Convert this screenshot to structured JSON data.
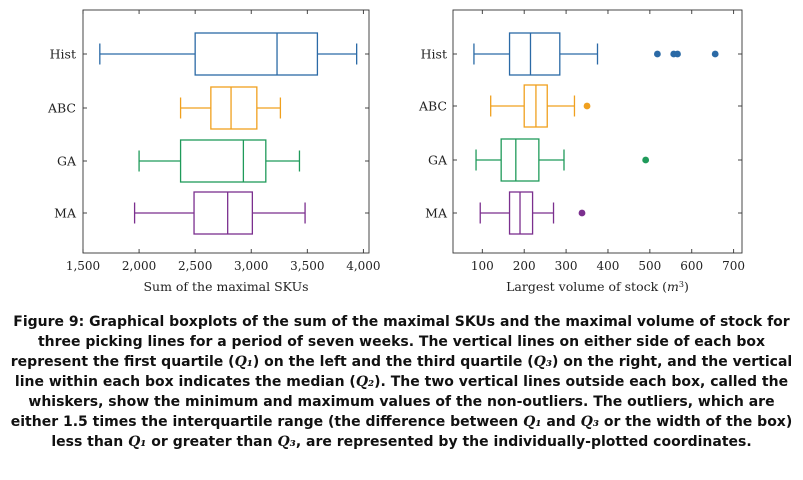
{
  "chart_data": [
    {
      "type": "boxplot",
      "orientation": "horizontal",
      "xlabel": "Sum of the maximal SKUs",
      "xlim": [
        1500,
        4050
      ],
      "xticks": [
        1500,
        2000,
        2500,
        3000,
        3500,
        4000
      ],
      "xtick_labels": [
        "1,500",
        "2,000",
        "2,500",
        "3,000",
        "3,500",
        "4,000"
      ],
      "categories": [
        "Hist",
        "ABC",
        "GA",
        "MA"
      ],
      "series": [
        {
          "name": "Hist",
          "color": "#2b6aa6",
          "min": 1650,
          "q1": 2500,
          "median": 3230,
          "q3": 3590,
          "max": 3940,
          "outliers": []
        },
        {
          "name": "ABC",
          "color": "#f0a01e",
          "min": 2370,
          "q1": 2640,
          "median": 2820,
          "q3": 3050,
          "max": 3260,
          "outliers": []
        },
        {
          "name": "GA",
          "color": "#1f9a5a",
          "min": 2000,
          "q1": 2370,
          "median": 2930,
          "q3": 3130,
          "max": 3430,
          "outliers": []
        },
        {
          "name": "MA",
          "color": "#7b2f8e",
          "min": 1960,
          "q1": 2490,
          "median": 2790,
          "q3": 3010,
          "max": 3480,
          "outliers": []
        }
      ]
    },
    {
      "type": "boxplot",
      "orientation": "horizontal",
      "xlabel": "Largest volume of stock",
      "xlabel_unit_base": "m",
      "xlabel_unit_exp": "3",
      "xlim": [
        30,
        720
      ],
      "xticks": [
        100,
        200,
        300,
        400,
        500,
        600,
        700
      ],
      "xtick_labels": [
        "100",
        "200",
        "300",
        "400",
        "500",
        "600",
        "700"
      ],
      "categories": [
        "Hist",
        "ABC",
        "GA",
        "MA"
      ],
      "series": [
        {
          "name": "Hist",
          "color": "#2b6aa6",
          "min": 80,
          "q1": 165,
          "median": 215,
          "q3": 285,
          "max": 375,
          "outliers": [
            518,
            557,
            566,
            656
          ]
        },
        {
          "name": "ABC",
          "color": "#f0a01e",
          "min": 120,
          "q1": 200,
          "median": 228,
          "q3": 255,
          "max": 320,
          "outliers": [
            350
          ]
        },
        {
          "name": "GA",
          "color": "#1f9a5a",
          "min": 85,
          "q1": 145,
          "median": 180,
          "q3": 235,
          "max": 295,
          "outliers": [
            490
          ]
        },
        {
          "name": "MA",
          "color": "#7b2f8e",
          "min": 95,
          "q1": 165,
          "median": 190,
          "q3": 220,
          "max": 270,
          "outliers": [
            338
          ]
        }
      ]
    }
  ],
  "caption": {
    "text": "Figure 9: Graphical boxplots of the sum of the maximal SKUs and the maximal volume of stock for three picking lines for a period of seven weeks. The vertical lines on either side of each box represent the first quartile (Q₁) on the left and the third quartile (Q₃) on the right, and the vertical line within each box indicates the median (Q₂). The two vertical lines outside each box, called the whiskers, show the minimum and maximum values of the non-outliers. The outliers, which are either 1.5 times the interquartile range (the difference between Q₁ and Q₃ or the width of the box) less than Q₁ or greater than Q₃, are represented by the individually-plotted coordinates."
  }
}
